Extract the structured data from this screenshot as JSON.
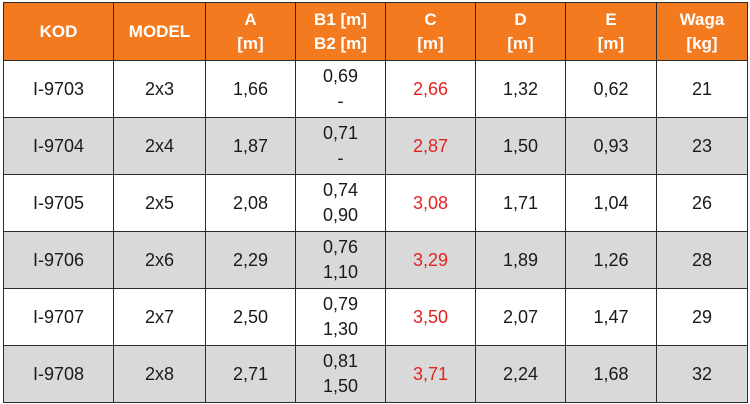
{
  "headers": [
    {
      "key": "kod",
      "lines": [
        "KOD"
      ]
    },
    {
      "key": "model",
      "lines": [
        "MODEL"
      ]
    },
    {
      "key": "a",
      "lines": [
        "A",
        "[m]"
      ]
    },
    {
      "key": "b",
      "lines": [
        "B1 [m]",
        "B2 [m]"
      ]
    },
    {
      "key": "c",
      "lines": [
        "C",
        "[m]"
      ]
    },
    {
      "key": "d",
      "lines": [
        "D",
        "[m]"
      ]
    },
    {
      "key": "e",
      "lines": [
        "E",
        "[m]"
      ]
    },
    {
      "key": "waga",
      "lines": [
        "Waga",
        "[kg]"
      ]
    }
  ],
  "rows": [
    {
      "kod": "I-9703",
      "model": "2x3",
      "a": "1,66",
      "b1": "0,69",
      "b2": "-",
      "c": "2,66",
      "d": "1,32",
      "e": "0,62",
      "waga": "21"
    },
    {
      "kod": "I-9704",
      "model": "2x4",
      "a": "1,87",
      "b1": "0,71",
      "b2": "-",
      "c": "2,87",
      "d": "1,50",
      "e": "0,93",
      "waga": "23"
    },
    {
      "kod": "I-9705",
      "model": "2x5",
      "a": "2,08",
      "b1": "0,74",
      "b2": "0,90",
      "c": "3,08",
      "d": "1,71",
      "e": "1,04",
      "waga": "26"
    },
    {
      "kod": "I-9706",
      "model": "2x6",
      "a": "2,29",
      "b1": "0,76",
      "b2": "1,10",
      "c": "3,29",
      "d": "1,89",
      "e": "1,26",
      "waga": "28"
    },
    {
      "kod": "I-9707",
      "model": "2x7",
      "a": "2,50",
      "b1": "0,79",
      "b2": "1,30",
      "c": "3,50",
      "d": "2,07",
      "e": "1,47",
      "waga": "29"
    },
    {
      "kod": "I-9708",
      "model": "2x8",
      "a": "2,71",
      "b1": "0,81",
      "b2": "1,50",
      "c": "3,71",
      "d": "2,24",
      "e": "1,68",
      "waga": "32"
    }
  ],
  "colors": {
    "header_bg": "#f47a20",
    "header_text": "#ffffff",
    "highlight_text": "#e32322",
    "alt_row_bg": "#d9d9d9"
  }
}
